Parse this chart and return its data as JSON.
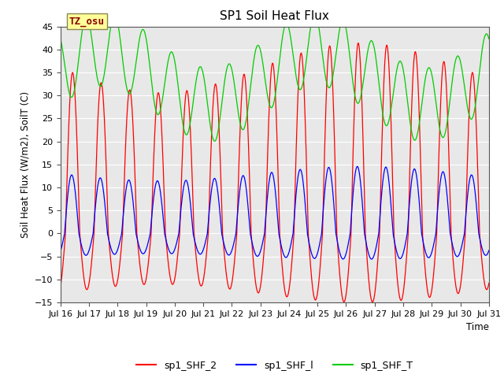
{
  "title": "SP1 Soil Heat Flux",
  "ylabel": "Soil Heat Flux (W/m2), SoilT (C)",
  "xlabel": "Time",
  "ylim": [
    -15,
    45
  ],
  "yticks": [
    -15,
    -10,
    -5,
    0,
    5,
    10,
    15,
    20,
    25,
    30,
    35,
    40,
    45
  ],
  "bg_color": "#e8e8e8",
  "fig_color": "#ffffff",
  "grid_color": "#ffffff",
  "legend_labels": [
    "sp1_SHF_2",
    "sp1_SHF_l",
    "sp1_SHF_T"
  ],
  "legend_colors": [
    "#ff0000",
    "#0000ff",
    "#00cc00"
  ],
  "tz_label": "TZ_osu",
  "tz_box_color": "#ffff99",
  "tz_text_color": "#880000",
  "n_days": 15,
  "start_day": 16,
  "end_day": 31,
  "points_per_day": 144,
  "shf2_day_amp": 36,
  "shf2_night_amp": 13,
  "shf1_day_amp": 13,
  "shf1_night_amp": 5,
  "shft_mean": 34,
  "shft_day_amp": 8,
  "shft_slow_amp": 6,
  "shft_slow_period": 7.5
}
